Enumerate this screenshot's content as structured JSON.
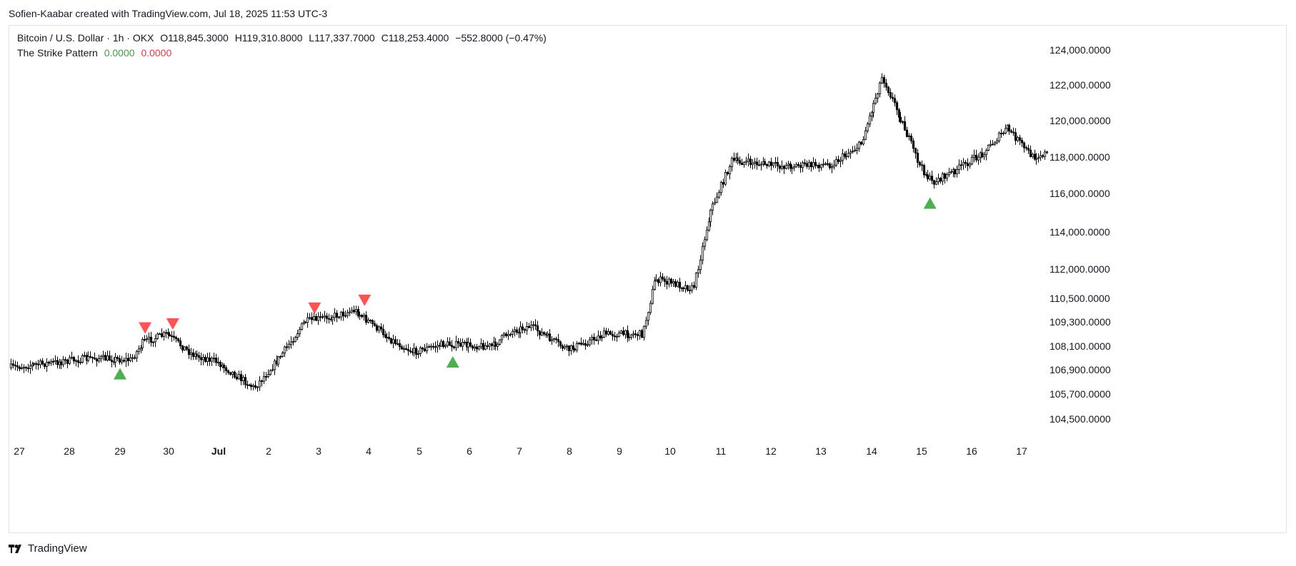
{
  "header": {
    "credit": "Sofien-Kaabar created with TradingView.com, Jul 18, 2025 11:53 UTC-3"
  },
  "legend": {
    "symbol": "Bitcoin / U.S. Dollar · 1h · OKX",
    "open": "O118,845.3000",
    "high": "H119,310.8000",
    "low": "L117,337.7000",
    "close": "C118,253.4000",
    "change": "−552.8000 (−0.47%)",
    "indicator": "The Strike Pattern",
    "indicator_value_1": "0.0000",
    "indicator_value_2": "0.0000"
  },
  "brand": {
    "name": "TradingView",
    "icon": "tradingview-logo-icon"
  },
  "colors": {
    "bull_marker": "#4caf50",
    "bear_marker": "#ff5252",
    "candle": "#000000",
    "indicator_pos": "#43a047",
    "indicator_neg": "#f23645"
  },
  "chart_data": {
    "type": "candlestick",
    "title": "",
    "xlabel": "",
    "ylabel": "",
    "x_ticks": [
      "27",
      "28",
      "29",
      "30",
      "Jul",
      "2",
      "3",
      "4",
      "5",
      "6",
      "7",
      "8",
      "9",
      "10",
      "11",
      "12",
      "13",
      "14",
      "15",
      "16",
      "17"
    ],
    "y_ticks": [
      "124,000.0000",
      "122,000.0000",
      "120,000.0000",
      "118,000.0000",
      "116,000.0000",
      "114,000.0000",
      "112,000.0000",
      "110,500.0000",
      "109,300.0000",
      "108,100.0000",
      "106,900.0000",
      "105,700.0000",
      "104,500.0000"
    ],
    "y_range": [
      104000,
      124500
    ],
    "x_range": [
      26.8,
      17.6
    ],
    "grid": false,
    "price_path": [
      {
        "t": "Jun 26 20:00",
        "price": 107000
      },
      {
        "t": "Jun 27 12:00",
        "price": 107200
      },
      {
        "t": "Jun 28 12:00",
        "price": 107500
      },
      {
        "t": "Jun 29 06:00",
        "price": 107400
      },
      {
        "t": "Jun 29 12:00",
        "price": 108300
      },
      {
        "t": "Jun 30 00:00",
        "price": 108700
      },
      {
        "t": "Jun 30 12:00",
        "price": 107700
      },
      {
        "t": "Jul 1 00:00",
        "price": 107300
      },
      {
        "t": "Jul 1 18:00",
        "price": 106000
      },
      {
        "t": "Jul 2 06:00",
        "price": 107500
      },
      {
        "t": "Jul 2 18:00",
        "price": 109300
      },
      {
        "t": "Jul 3 12:00",
        "price": 109700
      },
      {
        "t": "Jul 3 18:00",
        "price": 109900
      },
      {
        "t": "Jul 4 12:00",
        "price": 108400
      },
      {
        "t": "Jul 4 22:00",
        "price": 107800
      },
      {
        "t": "Jul 5 12:00",
        "price": 108200
      },
      {
        "t": "Jul 6 12:00",
        "price": 108100
      },
      {
        "t": "Jul 6 20:00",
        "price": 108800
      },
      {
        "t": "Jul 7 06:00",
        "price": 109100
      },
      {
        "t": "Jul 8 00:00",
        "price": 107900
      },
      {
        "t": "Jul 8 18:00",
        "price": 108700
      },
      {
        "t": "Jul 9 12:00",
        "price": 108700
      },
      {
        "t": "Jul 9 18:00",
        "price": 111500
      },
      {
        "t": "Jul 10 12:00",
        "price": 111000
      },
      {
        "t": "Jul 10 20:00",
        "price": 115000
      },
      {
        "t": "Jul 11 06:00",
        "price": 117800
      },
      {
        "t": "Jul 12 06:00",
        "price": 117500
      },
      {
        "t": "Jul 13 06:00",
        "price": 117600
      },
      {
        "t": "Jul 13 20:00",
        "price": 118700
      },
      {
        "t": "Jul 14 06:00",
        "price": 122500
      },
      {
        "t": "Jul 14 16:00",
        "price": 119800
      },
      {
        "t": "Jul 15 00:00",
        "price": 117500
      },
      {
        "t": "Jul 15 06:00",
        "price": 116600
      },
      {
        "t": "Jul 15 16:00",
        "price": 117200
      },
      {
        "t": "Jul 16 06:00",
        "price": 118200
      },
      {
        "t": "Jul 16 18:00",
        "price": 119600
      },
      {
        "t": "Jul 17 06:00",
        "price": 118000
      },
      {
        "t": "Jul 17 12:00",
        "price": 118200
      }
    ],
    "signals": [
      {
        "type": "bullish",
        "t": "Jun 29 00:00",
        "price": 106700
      },
      {
        "type": "bearish",
        "t": "Jun 29 12:00",
        "price": 109000
      },
      {
        "type": "bearish",
        "t": "Jun 30 02:00",
        "price": 109200
      },
      {
        "type": "bearish",
        "t": "Jul 2 22:00",
        "price": 110000
      },
      {
        "type": "bearish",
        "t": "Jul 3 22:00",
        "price": 110400
      },
      {
        "type": "bullish",
        "t": "Jul 5 16:00",
        "price": 107300
      },
      {
        "type": "bullish",
        "t": "Jul 15 04:00",
        "price": 115500
      }
    ]
  }
}
